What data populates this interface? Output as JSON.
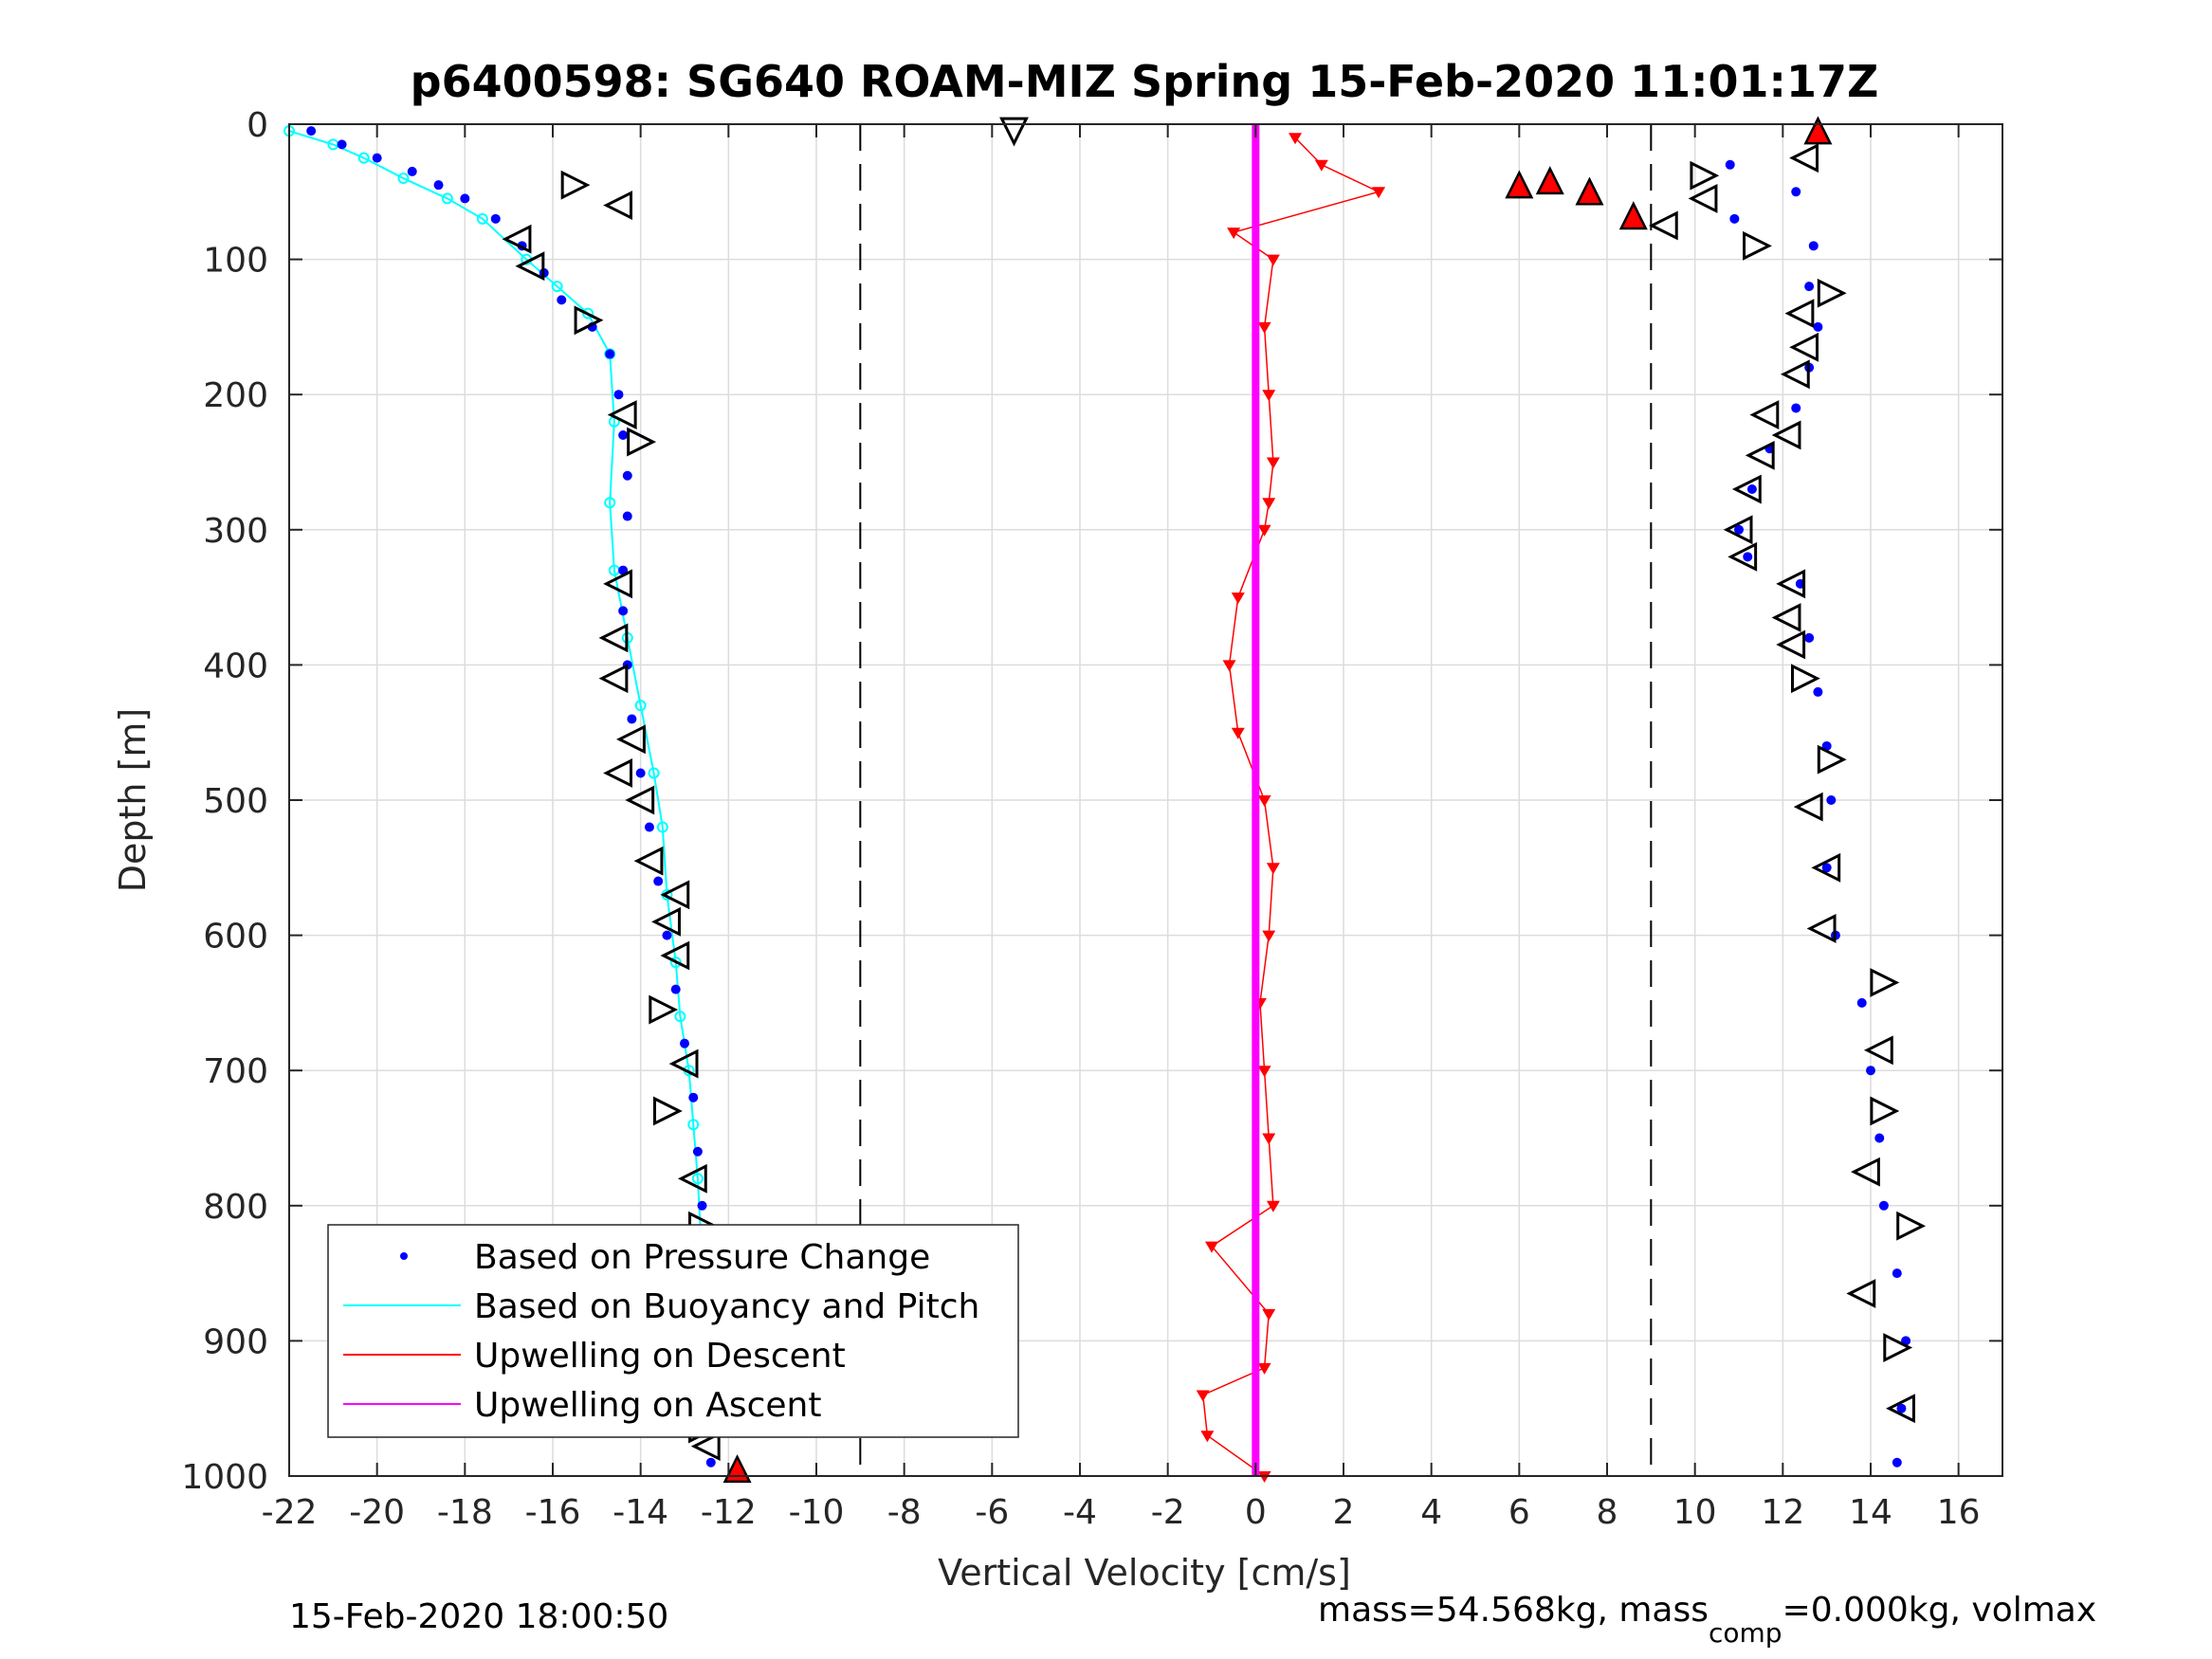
{
  "chart_data": {
    "type": "scatter",
    "title": "p6400598: SG640 ROAM-MIZ Spring 15-Feb-2020 11:01:17Z",
    "xlabel": "Vertical Velocity [cm/s]",
    "ylabel": "Depth [m]",
    "xlim": [
      -22,
      17
    ],
    "ylim": [
      1000,
      0
    ],
    "y_reversed": true,
    "grid": true,
    "xticks": [
      -22,
      -20,
      -18,
      -16,
      -14,
      -12,
      -10,
      -8,
      -6,
      -4,
      -2,
      0,
      2,
      4,
      6,
      8,
      10,
      12,
      14,
      16
    ],
    "xtick_labels": [
      "-22",
      "-20",
      "-18",
      "-16",
      "-14",
      "-12",
      "-10",
      "-8",
      "-6",
      "-4",
      "-2",
      "0",
      "2",
      "4",
      "6",
      "8",
      "10",
      "12",
      "14",
      "16"
    ],
    "yticks": [
      0,
      100,
      200,
      300,
      400,
      500,
      600,
      700,
      800,
      900,
      1000
    ],
    "ytick_labels": [
      "0",
      "100",
      "200",
      "300",
      "400",
      "500",
      "600",
      "700",
      "800",
      "900",
      "1000"
    ],
    "reference_lines_x": [
      -9,
      9
    ],
    "legend_position": "lower-left",
    "series": [
      {
        "name": "Based on Pressure Change",
        "color": "#0000ff",
        "style": "dots",
        "descent": {
          "x": [
            -21.5,
            -20.8,
            -20.0,
            -19.2,
            -18.6,
            -18.0,
            -17.3,
            -16.7,
            -16.2,
            -15.8,
            -15.1,
            -14.7,
            -14.5,
            -14.4,
            -14.3,
            -14.3,
            -14.4,
            -14.4,
            -14.3,
            -14.2,
            -14.0,
            -13.8,
            -13.6,
            -13.4,
            -13.2,
            -13.0,
            -12.8,
            -12.7,
            -12.6,
            -12.6,
            -12.5,
            -12.5,
            -12.4
          ],
          "y": [
            5,
            15,
            25,
            35,
            45,
            55,
            70,
            90,
            110,
            130,
            150,
            170,
            200,
            230,
            260,
            290,
            330,
            360,
            400,
            440,
            480,
            520,
            560,
            600,
            640,
            680,
            720,
            760,
            800,
            850,
            900,
            950,
            990
          ]
        },
        "ascent": {
          "x": [
            10.8,
            12.3,
            10.9,
            12.7,
            12.6,
            12.8,
            12.6,
            12.3,
            11.7,
            11.3,
            11.0,
            11.2,
            12.4,
            12.6,
            12.8,
            13.0,
            13.1,
            13.0,
            13.2,
            13.8,
            14.0,
            14.2,
            14.3,
            14.6,
            14.8,
            14.7,
            14.6
          ],
          "y": [
            30,
            50,
            70,
            90,
            120,
            150,
            180,
            210,
            240,
            270,
            300,
            320,
            340,
            380,
            420,
            460,
            500,
            550,
            600,
            650,
            700,
            750,
            800,
            850,
            900,
            950,
            990
          ]
        }
      },
      {
        "name": "Based on Buoyancy and Pitch",
        "color": "#00ffff",
        "style": "line",
        "x": [
          -22.0,
          -21.0,
          -20.3,
          -19.4,
          -18.4,
          -17.6,
          -16.6,
          -15.9,
          -15.2,
          -14.7,
          -14.6,
          -14.7,
          -14.6,
          -14.3,
          -14.0,
          -13.7,
          -13.5,
          -13.4,
          -13.2,
          -13.1,
          -12.9,
          -12.8,
          -12.7,
          -12.6,
          -12.6,
          -12.5
        ],
        "y": [
          5,
          15,
          25,
          40,
          55,
          70,
          100,
          120,
          140,
          170,
          220,
          280,
          330,
          380,
          430,
          480,
          520,
          570,
          620,
          660,
          700,
          740,
          780,
          840,
          900,
          960
        ]
      },
      {
        "name": "Upwelling on Descent",
        "color": "#ff0000",
        "style": "line-with-down-triangles",
        "x": [
          0.9,
          1.5,
          2.8,
          -0.5,
          0.4,
          0.2,
          0.3,
          0.4,
          0.3,
          0.2,
          -0.4,
          -0.6,
          -0.4,
          0.2,
          0.4,
          0.3,
          0.1,
          0.2,
          0.3,
          0.4,
          -1.0,
          0.3,
          0.2,
          -1.2,
          -1.1,
          0.2
        ],
        "y": [
          10,
          30,
          50,
          80,
          100,
          150,
          200,
          250,
          280,
          300,
          350,
          400,
          450,
          500,
          550,
          600,
          650,
          700,
          750,
          800,
          830,
          880,
          920,
          940,
          970,
          1000
        ]
      },
      {
        "name": "Upwelling on Ascent",
        "color": "#ff00ff",
        "style": "line",
        "x": [
          0,
          0,
          0,
          0,
          0,
          0,
          0,
          0,
          0,
          0,
          0
        ],
        "y": [
          0,
          100,
          200,
          300,
          400,
          500,
          600,
          700,
          800,
          900,
          1000
        ]
      }
    ],
    "pitch_markers": {
      "descent": {
        "x": [
          -15.5,
          -14.5,
          -16.8,
          -16.5,
          -15.2,
          -14.4,
          -14.0,
          -14.5,
          -14.6,
          -14.6,
          -14.2,
          -14.5,
          -14.0,
          -13.8,
          -13.2,
          -13.4,
          -13.2,
          -13.5,
          -13.0,
          -13.4,
          -12.8,
          -12.6,
          -12.5,
          -12.6,
          -12.5,
          -12.6,
          -12.6,
          -12.5
        ],
        "y": [
          45,
          60,
          85,
          105,
          145,
          215,
          235,
          340,
          380,
          410,
          455,
          480,
          500,
          545,
          570,
          590,
          615,
          655,
          695,
          730,
          780,
          815,
          845,
          885,
          925,
          945,
          965,
          978
        ],
        "direction": [
          "right",
          "left",
          "left",
          "left",
          "right",
          "left",
          "right",
          "left",
          "left",
          "left",
          "left",
          "left",
          "left",
          "left",
          "left",
          "left",
          "left",
          "right",
          "left",
          "right",
          "left",
          "right",
          "right",
          "right",
          "left",
          "left",
          "right",
          "left"
        ]
      },
      "ascent": {
        "x": [
          -5.5,
          12.5,
          10.2,
          10.2,
          9.3,
          11.4,
          13.1,
          12.4,
          12.5,
          12.3,
          11.6,
          12.1,
          11.5,
          11.2,
          11.0,
          11.1,
          12.2,
          12.1,
          12.2,
          12.5,
          13.1,
          12.6,
          13.0,
          12.9,
          14.3,
          14.2,
          14.3,
          13.9,
          14.9,
          13.8,
          14.6,
          14.7
        ],
        "y": [
          5,
          25,
          38,
          55,
          75,
          90,
          125,
          140,
          165,
          185,
          215,
          230,
          245,
          270,
          300,
          320,
          340,
          365,
          385,
          410,
          470,
          505,
          550,
          595,
          635,
          685,
          730,
          775,
          815,
          865,
          905,
          950
        ],
        "direction": [
          "down",
          "left",
          "right",
          "left",
          "left",
          "right",
          "right",
          "left",
          "left",
          "left",
          "left",
          "left",
          "left",
          "left",
          "left",
          "left",
          "left",
          "left",
          "left",
          "right",
          "right",
          "left",
          "left",
          "left",
          "right",
          "left",
          "right",
          "left",
          "right",
          "left",
          "right",
          "left"
        ]
      }
    },
    "stall_markers": {
      "x": [
        6.0,
        6.7,
        7.6,
        8.6,
        -11.8,
        12.8
      ],
      "y": [
        45,
        42,
        50,
        68,
        995,
        5
      ],
      "color": "#ff0000"
    }
  },
  "legend": [
    {
      "label": "Based on Pressure Change",
      "color": "#0000ff",
      "marker": "dot"
    },
    {
      "label": "Based on Buoyancy and Pitch",
      "color": "#00ffff",
      "marker": "line"
    },
    {
      "label": "Upwelling on Descent",
      "color": "#ff0000",
      "marker": "line"
    },
    {
      "label": "Upwelling on Ascent",
      "color": "#ff00ff",
      "marker": "line"
    }
  ],
  "footer": {
    "left": "15-Feb-2020 18:00:50",
    "right_main": "mass=54.568kg, mass",
    "right_sub": "comp",
    "right_tail": "=0.000kg, volmax"
  }
}
